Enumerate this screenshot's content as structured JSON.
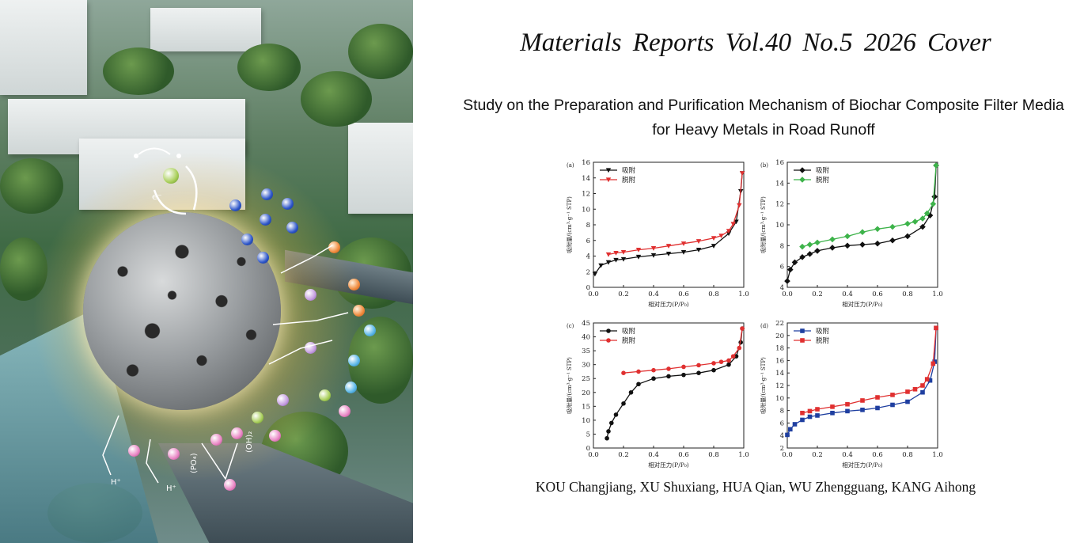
{
  "header": {
    "journal_line": "Materials Reports  Vol.40  No.5  2026  Cover"
  },
  "article": {
    "title": "Study on the Preparation and Purification Mechanism of Biochar Composite Filter Media for Heavy Metals in Road Runoff",
    "authors": "KOU Changjiang, XU Shuxiang, HUA Qian, WU Zhengguang, KANG Aihong"
  },
  "cover_art": {
    "labels": {
      "electron": "e⁻",
      "hydrogen_ion": "H⁺",
      "phosphate": "(PO₄)",
      "hydroxide": "(OH)₂"
    }
  },
  "chart_data": [
    {
      "type": "line",
      "panel_label": "(a)",
      "xlabel": "相对压力(P/P₀)",
      "ylabel": "吸附量/(cm³·g⁻¹ STP)",
      "xlim": [
        0.0,
        1.0
      ],
      "ylim": [
        0,
        16
      ],
      "xticks": [
        "0.0",
        "0.2",
        "0.4",
        "0.6",
        "0.8",
        "1.0"
      ],
      "yticks": [
        "0",
        "2",
        "4",
        "6",
        "8",
        "10",
        "12",
        "14",
        "16"
      ],
      "legend_position": "top-left",
      "series": [
        {
          "name": "吸附",
          "color": "#111111",
          "marker": "triangle-down",
          "x": [
            0.01,
            0.05,
            0.1,
            0.15,
            0.2,
            0.3,
            0.4,
            0.5,
            0.6,
            0.7,
            0.8,
            0.9,
            0.95,
            0.98,
            0.99
          ],
          "y": [
            1.7,
            2.8,
            3.2,
            3.5,
            3.6,
            3.9,
            4.1,
            4.3,
            4.5,
            4.8,
            5.3,
            6.9,
            8.4,
            12.3,
            14.6
          ]
        },
        {
          "name": "脱附",
          "color": "#e03030",
          "marker": "triangle-down",
          "x": [
            0.99,
            0.97,
            0.93,
            0.9,
            0.85,
            0.8,
            0.7,
            0.6,
            0.5,
            0.4,
            0.3,
            0.2,
            0.15,
            0.1
          ],
          "y": [
            14.6,
            10.5,
            8.1,
            7.2,
            6.6,
            6.3,
            5.9,
            5.6,
            5.3,
            5.0,
            4.8,
            4.5,
            4.4,
            4.2
          ]
        }
      ]
    },
    {
      "type": "line",
      "panel_label": "(b)",
      "xlabel": "相对压力(P/P₀)",
      "ylabel": "吸附量/(cm³·g⁻¹ STP)",
      "xlim": [
        0.0,
        1.0
      ],
      "ylim": [
        4,
        16
      ],
      "xticks": [
        "0.0",
        "0.2",
        "0.4",
        "0.6",
        "0.8",
        "1.0"
      ],
      "yticks": [
        "4",
        "6",
        "8",
        "10",
        "12",
        "14",
        "16"
      ],
      "legend_position": "top-left",
      "series": [
        {
          "name": "吸附",
          "color": "#111111",
          "marker": "diamond",
          "x": [
            0.0,
            0.02,
            0.05,
            0.1,
            0.15,
            0.2,
            0.3,
            0.4,
            0.5,
            0.6,
            0.7,
            0.8,
            0.9,
            0.95,
            0.98,
            0.99
          ],
          "y": [
            4.6,
            5.7,
            6.4,
            6.9,
            7.2,
            7.5,
            7.8,
            8.0,
            8.1,
            8.2,
            8.5,
            8.9,
            9.8,
            10.9,
            12.7,
            15.7
          ]
        },
        {
          "name": "脱附",
          "color": "#3db34a",
          "marker": "diamond",
          "x": [
            0.99,
            0.97,
            0.93,
            0.9,
            0.85,
            0.8,
            0.7,
            0.6,
            0.5,
            0.4,
            0.3,
            0.2,
            0.15,
            0.1
          ],
          "y": [
            15.7,
            12.0,
            11.1,
            10.6,
            10.3,
            10.1,
            9.8,
            9.6,
            9.3,
            8.9,
            8.6,
            8.3,
            8.1,
            7.9
          ]
        }
      ]
    },
    {
      "type": "line",
      "panel_label": "(c)",
      "xlabel": "相对压力(P/P₀)",
      "ylabel": "吸附量/(cm³·g⁻¹ STP)",
      "xlim": [
        0.0,
        1.0
      ],
      "ylim": [
        0,
        45
      ],
      "xticks": [
        "0.0",
        "0.2",
        "0.4",
        "0.6",
        "0.8",
        "1.0"
      ],
      "yticks": [
        "0",
        "5",
        "10",
        "15",
        "20",
        "25",
        "30",
        "35",
        "40",
        "45"
      ],
      "legend_position": "top-left",
      "series": [
        {
          "name": "吸附",
          "color": "#111111",
          "marker": "circle",
          "x": [
            0.09,
            0.1,
            0.12,
            0.15,
            0.2,
            0.25,
            0.3,
            0.4,
            0.5,
            0.6,
            0.7,
            0.8,
            0.9,
            0.95,
            0.98,
            0.99
          ],
          "y": [
            3.5,
            6,
            9,
            12,
            16,
            20,
            23,
            25,
            25.8,
            26.3,
            27,
            28,
            30,
            33,
            38,
            43
          ]
        },
        {
          "name": "脱附",
          "color": "#e03030",
          "marker": "circle",
          "x": [
            0.99,
            0.97,
            0.93,
            0.9,
            0.85,
            0.8,
            0.7,
            0.6,
            0.5,
            0.4,
            0.3,
            0.2
          ],
          "y": [
            43,
            36,
            33,
            31.5,
            31,
            30.5,
            29.8,
            29.2,
            28.5,
            28,
            27.5,
            27
          ]
        }
      ]
    },
    {
      "type": "line",
      "panel_label": "(d)",
      "xlabel": "相对压力(P/P₀)",
      "ylabel": "吸附量/(cm³·g⁻¹ STP)",
      "xlim": [
        0.0,
        1.0
      ],
      "ylim": [
        2,
        22
      ],
      "xticks": [
        "0.0",
        "0.2",
        "0.4",
        "0.6",
        "0.8",
        "1.0"
      ],
      "yticks": [
        "2",
        "4",
        "6",
        "8",
        "10",
        "12",
        "14",
        "16",
        "18",
        "20",
        "22"
      ],
      "legend_position": "top-left",
      "series": [
        {
          "name": "吸附",
          "color": "#1f3fa0",
          "marker": "square",
          "x": [
            0.0,
            0.02,
            0.05,
            0.1,
            0.15,
            0.2,
            0.3,
            0.4,
            0.5,
            0.6,
            0.7,
            0.8,
            0.9,
            0.95,
            0.98,
            0.99
          ],
          "y": [
            4.1,
            5.0,
            5.8,
            6.5,
            7.0,
            7.2,
            7.6,
            7.9,
            8.1,
            8.4,
            8.9,
            9.4,
            10.9,
            12.8,
            15.8,
            21.2
          ]
        },
        {
          "name": "脱附",
          "color": "#e03030",
          "marker": "square",
          "x": [
            0.99,
            0.97,
            0.93,
            0.9,
            0.85,
            0.8,
            0.7,
            0.6,
            0.5,
            0.4,
            0.3,
            0.2,
            0.15,
            0.1
          ],
          "y": [
            21.2,
            15.5,
            13.0,
            12.0,
            11.4,
            11.0,
            10.5,
            10.1,
            9.6,
            9.0,
            8.6,
            8.2,
            7.9,
            7.6
          ]
        }
      ]
    }
  ]
}
